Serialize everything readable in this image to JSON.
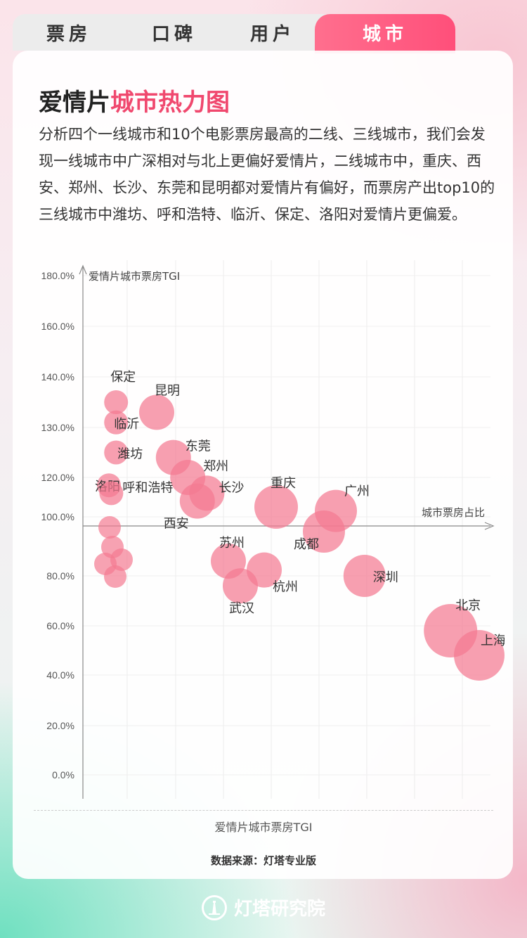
{
  "tabs": [
    {
      "label": "票房",
      "active": false
    },
    {
      "label": "口碑",
      "active": false
    },
    {
      "label": "用户",
      "active": false
    },
    {
      "label": "城市",
      "active": true
    }
  ],
  "title": {
    "part1": "爱情片",
    "part2": "城市热力图"
  },
  "description": "分析四个一线城市和10个电影票房最高的二线、三线城市，我们会发现一线城市中广深相对与北上更偏好爱情片，二线城市中，重庆、西安、郑州、长沙、东莞和昆明都对爱情片有偏好，而票房产出top10的三线城市中潍坊、呼和浩特、临沂、保定、洛阳对爱情片更偏爱。",
  "accent_color": "#f0486e",
  "bubble_color": "#f47a92",
  "chart_data": {
    "type": "scatter",
    "ylabel": "爱情片城市票房TGI",
    "xlabel": "城市票房占比",
    "xlabel_bottom": "爱情片城市票房TGI",
    "y_ticks": [
      "180.0%",
      "160.0%",
      "140.0%",
      "130.0%",
      "120.0%",
      "100.0%",
      "80.0%",
      "60.0%",
      "40.0%",
      "20.0%",
      "0.0%"
    ],
    "ylim": [
      0,
      180
    ],
    "points": [
      {
        "label": "保定",
        "x": 0.8,
        "y": 135
      },
      {
        "label": "临沂",
        "x": 0.8,
        "y": 131
      },
      {
        "label": "昆明",
        "x": 2.5,
        "y": 133
      },
      {
        "label": "潍坊",
        "x": 0.8,
        "y": 125
      },
      {
        "label": "东莞",
        "x": 3.2,
        "y": 124
      },
      {
        "label": "郑州",
        "x": 3.8,
        "y": 120
      },
      {
        "label": "洛阳",
        "x": 0.5,
        "y": 116
      },
      {
        "label": "呼和浩特",
        "x": 0.6,
        "y": 112
      },
      {
        "label": "长沙",
        "x": 4.6,
        "y": 112
      },
      {
        "label": "西安",
        "x": 4.2,
        "y": 108
      },
      {
        "label": "重庆",
        "x": 7.5,
        "y": 105
      },
      {
        "label": "广州",
        "x": 10.0,
        "y": 103
      },
      {
        "label": "成都",
        "x": 9.5,
        "y": 95
      },
      {
        "label": "苏州",
        "x": 5.5,
        "y": 85
      },
      {
        "label": "杭州",
        "x": 7.0,
        "y": 82
      },
      {
        "label": "武汉",
        "x": 6.0,
        "y": 76
      },
      {
        "label": "深圳",
        "x": 11.2,
        "y": 80
      },
      {
        "label": "北京",
        "x": 14.8,
        "y": 58
      },
      {
        "label": "上海",
        "x": 16.0,
        "y": 48
      }
    ]
  },
  "source": "数据来源：灯塔专业版",
  "logo_text": "灯塔研究院"
}
